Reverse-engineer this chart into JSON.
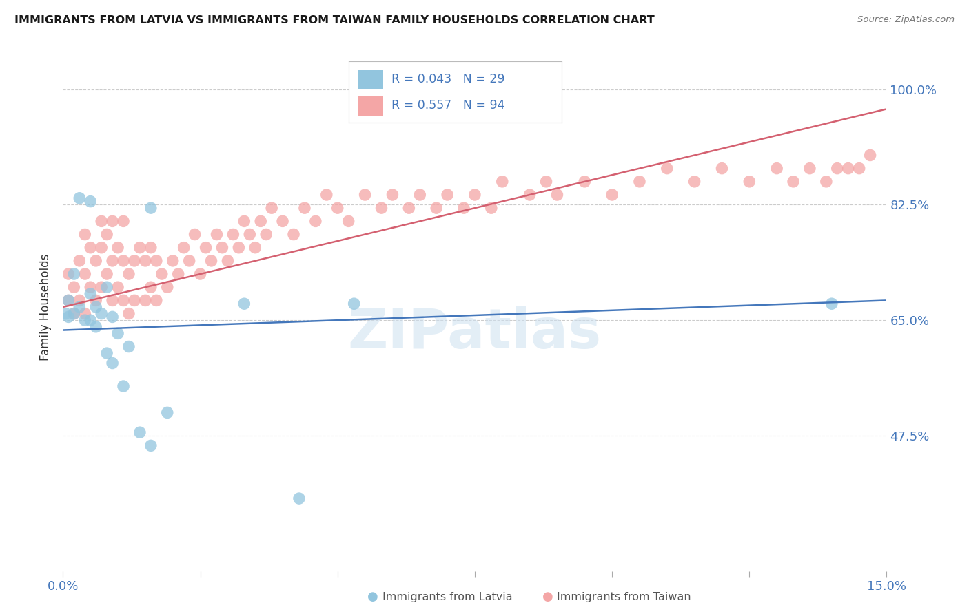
{
  "title": "IMMIGRANTS FROM LATVIA VS IMMIGRANTS FROM TAIWAN FAMILY HOUSEHOLDS CORRELATION CHART",
  "source": "Source: ZipAtlas.com",
  "ylabel": "Family Households",
  "xlim": [
    0.0,
    0.15
  ],
  "ylim": [
    0.27,
    1.07
  ],
  "ytick_vals": [
    0.475,
    0.65,
    0.825,
    1.0
  ],
  "ytick_labels": [
    "47.5%",
    "65.0%",
    "82.5%",
    "100.0%"
  ],
  "xtick_vals": [
    0.0,
    0.025,
    0.05,
    0.075,
    0.1,
    0.125,
    0.15
  ],
  "legend_latvia_R": "0.043",
  "legend_latvia_N": "29",
  "legend_taiwan_R": "0.557",
  "legend_taiwan_N": "94",
  "blue_color": "#92c5de",
  "pink_color": "#f4a6a6",
  "line_blue": "#4477bb",
  "line_pink": "#d46070",
  "axis_tick_color": "#4477bb",
  "title_color": "#1a1a1a",
  "source_color": "#777777",
  "watermark_color": "#cce0f0",
  "latvia_x": [
    0.001,
    0.001,
    0.002,
    0.002,
    0.003,
    0.003,
    0.003,
    0.004,
    0.004,
    0.005,
    0.005,
    0.005,
    0.006,
    0.006,
    0.007,
    0.008,
    0.008,
    0.009,
    0.009,
    0.01,
    0.011,
    0.012,
    0.014,
    0.016,
    0.019,
    0.033,
    0.043,
    0.053,
    0.14
  ],
  "latvia_y": [
    0.64,
    0.66,
    0.66,
    0.72,
    0.67,
    0.68,
    0.84,
    0.65,
    0.83,
    0.65,
    0.69,
    0.83,
    0.64,
    0.67,
    0.66,
    0.6,
    0.7,
    0.585,
    0.65,
    0.63,
    0.55,
    0.61,
    0.48,
    0.82,
    0.51,
    0.675,
    0.38,
    0.675,
    0.675
  ],
  "taiwan_x": [
    0.001,
    0.001,
    0.002,
    0.002,
    0.003,
    0.003,
    0.004,
    0.004,
    0.004,
    0.005,
    0.005,
    0.006,
    0.006,
    0.007,
    0.007,
    0.007,
    0.008,
    0.008,
    0.009,
    0.009,
    0.009,
    0.01,
    0.01,
    0.011,
    0.011,
    0.011,
    0.012,
    0.012,
    0.013,
    0.013,
    0.014,
    0.015,
    0.015,
    0.016,
    0.016,
    0.017,
    0.017,
    0.018,
    0.019,
    0.02,
    0.021,
    0.022,
    0.023,
    0.024,
    0.025,
    0.026,
    0.027,
    0.028,
    0.029,
    0.03,
    0.031,
    0.032,
    0.033,
    0.034,
    0.035,
    0.036,
    0.037,
    0.038,
    0.04,
    0.042,
    0.044,
    0.046,
    0.048,
    0.05,
    0.052,
    0.055,
    0.058,
    0.06,
    0.063,
    0.065,
    0.068,
    0.07,
    0.073,
    0.075,
    0.078,
    0.08,
    0.085,
    0.088,
    0.09,
    0.095,
    0.1,
    0.105,
    0.11,
    0.115,
    0.12,
    0.125,
    0.13,
    0.133,
    0.136,
    0.139,
    0.141,
    0.143,
    0.145,
    0.147
  ],
  "taiwan_y": [
    0.68,
    0.72,
    0.66,
    0.7,
    0.68,
    0.74,
    0.66,
    0.72,
    0.78,
    0.7,
    0.76,
    0.68,
    0.74,
    0.7,
    0.76,
    0.8,
    0.72,
    0.78,
    0.68,
    0.74,
    0.8,
    0.7,
    0.76,
    0.68,
    0.74,
    0.8,
    0.66,
    0.72,
    0.68,
    0.74,
    0.76,
    0.68,
    0.74,
    0.7,
    0.76,
    0.68,
    0.74,
    0.72,
    0.7,
    0.74,
    0.72,
    0.76,
    0.74,
    0.78,
    0.72,
    0.76,
    0.74,
    0.78,
    0.76,
    0.74,
    0.78,
    0.76,
    0.8,
    0.78,
    0.76,
    0.8,
    0.78,
    0.82,
    0.8,
    0.78,
    0.82,
    0.8,
    0.84,
    0.82,
    0.8,
    0.84,
    0.82,
    0.84,
    0.82,
    0.84,
    0.82,
    0.84,
    0.82,
    0.84,
    0.82,
    0.86,
    0.84,
    0.86,
    0.84,
    0.86,
    0.84,
    0.86,
    0.88,
    0.86,
    0.88,
    0.86,
    0.88,
    0.86,
    0.88,
    0.86,
    0.88,
    0.88,
    0.88,
    0.9
  ]
}
